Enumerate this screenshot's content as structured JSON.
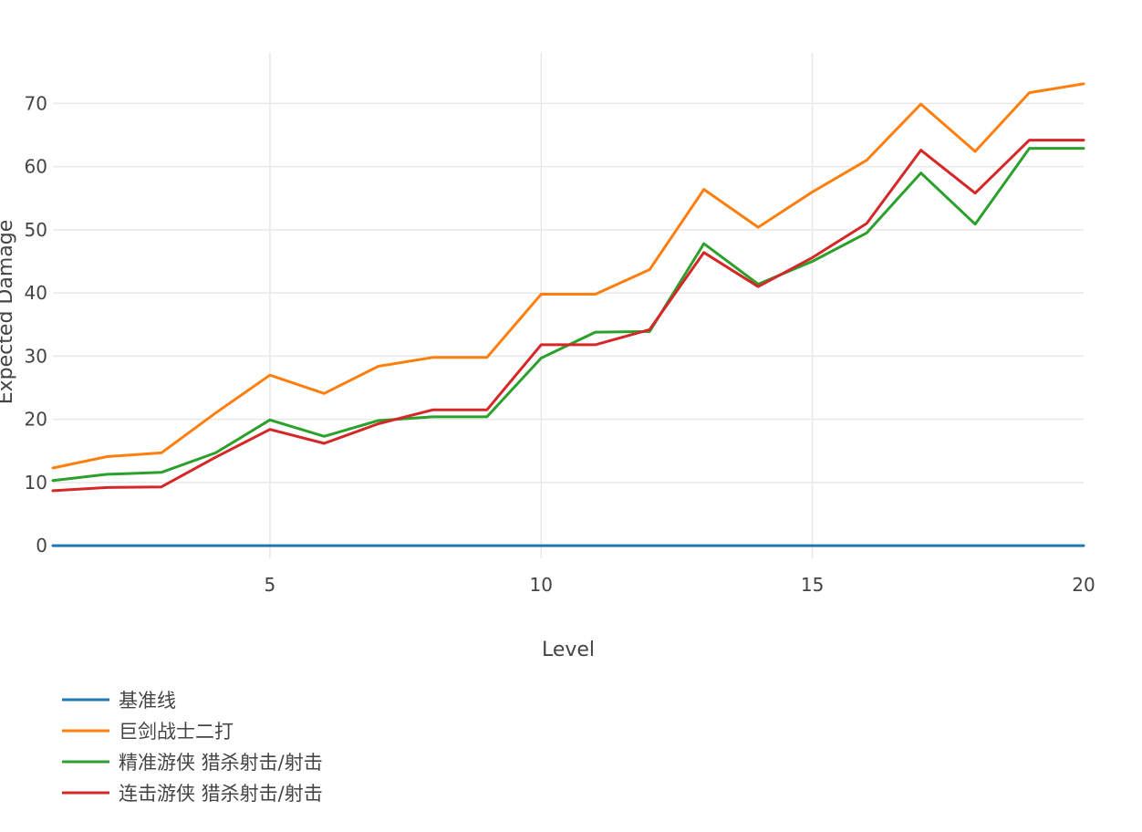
{
  "chart_data": {
    "type": "line",
    "xlabel": "Level",
    "ylabel": "Expected Damage",
    "xlim": [
      1,
      20
    ],
    "ylim": [
      -2,
      78
    ],
    "x_ticks": [
      5,
      10,
      15,
      20
    ],
    "y_ticks": [
      0,
      10,
      20,
      30,
      40,
      50,
      60,
      70
    ],
    "grid": true,
    "legend_position": "bottom-left",
    "x": [
      1,
      2,
      3,
      4,
      5,
      6,
      7,
      8,
      9,
      10,
      11,
      12,
      13,
      14,
      15,
      16,
      17,
      18,
      19,
      20
    ],
    "series": [
      {
        "name": "基准线",
        "color": "#1f77b4",
        "values": [
          0,
          0,
          0,
          0,
          0,
          0,
          0,
          0,
          0,
          0,
          0,
          0,
          0,
          0,
          0,
          0,
          0,
          0,
          0,
          0
        ]
      },
      {
        "name": "巨剑战士二打",
        "color": "#ff7f0e",
        "values": [
          12.3,
          14.1,
          14.7,
          21.0,
          27.0,
          24.1,
          28.4,
          29.8,
          29.8,
          39.8,
          39.8,
          43.7,
          56.4,
          50.4,
          56.0,
          61.0,
          69.9,
          62.4,
          71.7,
          73.1
        ]
      },
      {
        "name": "精准游侠 猎杀射击/射击",
        "color": "#2ca02c",
        "values": [
          10.3,
          11.3,
          11.6,
          14.7,
          19.9,
          17.3,
          19.8,
          20.4,
          20.4,
          29.7,
          33.8,
          33.9,
          47.8,
          41.4,
          45.0,
          49.5,
          59.0,
          50.9,
          62.9,
          62.9
        ]
      },
      {
        "name": "连击游侠 猎杀射击/射击",
        "color": "#d62728",
        "values": [
          8.7,
          9.2,
          9.3,
          14.0,
          18.4,
          16.2,
          19.3,
          21.5,
          21.5,
          31.8,
          31.8,
          34.2,
          46.4,
          41.0,
          45.6,
          51.0,
          62.6,
          55.8,
          64.2,
          64.2
        ]
      }
    ]
  }
}
